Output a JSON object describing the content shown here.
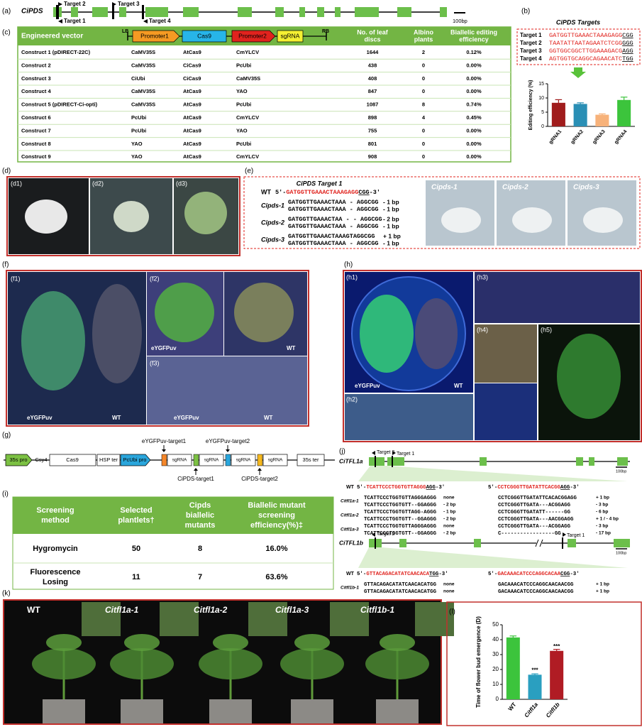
{
  "panel_a": {
    "label": "(a)",
    "gene": "CiPDS",
    "targets": [
      "Target 2",
      "Target 3",
      "Target 1",
      "Target 4"
    ],
    "scale": "100bp"
  },
  "panel_b": {
    "label": "(b)",
    "title": "CiPDS Targets",
    "targets": [
      {
        "name": "Target 1",
        "spacer": "GATGGTTGAAACTAAAGAGG",
        "pam": "CGG"
      },
      {
        "name": "Target 2",
        "spacer": "TAATATTAATAGAATCTCGG",
        "pam": "GGG"
      },
      {
        "name": "Target 3",
        "spacer": "GGTGGCGGCTTGGAAAGACG",
        "pam": "AGG"
      },
      {
        "name": "Target 4",
        "spacer": "AGTGGTGCAGGCAGAACATC",
        "pam": "TGG"
      }
    ]
  },
  "panel_c": {
    "label": "(c)",
    "header": "Engineered vector",
    "vector": {
      "lb": "LB",
      "promoter1": "Promoter1",
      "cas9": "Cas9",
      "promoter2": "Promoter2",
      "sgrna": "sgRNA",
      "rb": "RB"
    },
    "columns": [
      [
        "No. of  leaf",
        "discs"
      ],
      [
        "Albino",
        "plants"
      ],
      [
        "Biallelic editing",
        "efficiency"
      ]
    ],
    "rows": [
      [
        "Construct 1 (pDIRECT-22C)",
        "CaMV35S",
        "AtCas9",
        "CmYLCV",
        1644,
        2,
        "0.12%"
      ],
      [
        "Construct 2",
        "CaMV35S",
        "CiCas9",
        "PcUbi",
        438,
        0,
        "0.00%"
      ],
      [
        "Construct 3",
        "CiUbi",
        "CiCas9",
        "CaMV35S",
        408,
        0,
        "0.00%"
      ],
      [
        "Construct 4",
        "CaMV35S",
        "AtCas9",
        "YAO",
        847,
        0,
        "0.00%"
      ],
      [
        "Construct 5 (pDIRECT-Ci-opti)",
        "CaMV35S",
        "AtCas9",
        "PcUbi",
        1087,
        8,
        "0.74%"
      ],
      [
        "Construct 6",
        "PcUbi",
        "AtCas9",
        "CmYLCV",
        898,
        4,
        "0.45%"
      ],
      [
        "Construct 7",
        "PcUbi",
        "AtCas9",
        "YAO",
        755,
        0,
        "0.00%"
      ],
      [
        "Construct 8",
        "YAO",
        "AtCas9",
        "PcUbi",
        801,
        0,
        "0.00%"
      ],
      [
        "Construct 9",
        "YAO",
        "AtCas9",
        "CmYLCV",
        908,
        0,
        "0.00%"
      ]
    ]
  },
  "panel_d": {
    "label": "(d)",
    "subpanels": [
      "(d1)",
      "(d2)",
      "(d3)"
    ]
  },
  "panel_e": {
    "label": "(e)",
    "title": "CiPDS Target 1",
    "wt": {
      "name": "WT",
      "parts": [
        "5'-",
        "GATGGTTGAAACTAAAGAGG",
        "CGG",
        "-3'"
      ]
    },
    "mutants": [
      {
        "name": "Cipds-1",
        "alleles": [
          {
            "seq": "GATGGTTGAAACTAAA - AGGCGG",
            "change": "- 1 bp"
          },
          {
            "seq": "GATGGTTGAAACTAAA - AGGCGG",
            "change": "- 1 bp"
          }
        ]
      },
      {
        "name": "Cipds-2",
        "alleles": [
          {
            "seq": "GATGGTTGAAACTAA - - AGGCGG",
            "change": "- 2 bp"
          },
          {
            "seq": "GATGGTTGAAACTAAA - AGGCGG",
            "change": "- 1 bp"
          }
        ]
      },
      {
        "name": "Cipds-3",
        "alleles": [
          {
            "seq": "GATGGTTGAAACTAAAGTAGGCGG",
            "change": "+ 1 bp"
          },
          {
            "seq": "GATGGTTGAAACTAAA - AGGCGG",
            "change": "- 1 bp"
          }
        ]
      }
    ],
    "photos": [
      "Cipds-1",
      "Cipds-2",
      "Cipds-3"
    ]
  },
  "panel_f": {
    "label": "(f)",
    "subpanels": [
      "(f1)",
      "(f2)",
      "(f3)"
    ],
    "labels": [
      "eYGFPuv",
      "WT",
      "eYGFPuv",
      "WT",
      "eYGFPuv",
      "WT"
    ]
  },
  "panel_g": {
    "label": "(g)",
    "elements": [
      "35s pro",
      "Csy4",
      "Cas9",
      "HSP ter",
      "PcUbi pro",
      "sgRNA",
      "sgRNA",
      "sgRNA",
      "sgRNA",
      "35s ter"
    ],
    "targets": [
      "eYGFPuv-target1",
      "eYGFPuv-target2",
      "CiPDS-target1",
      "CiPDS-target2"
    ]
  },
  "panel_h": {
    "label": "(h)",
    "subpanels": [
      "(h1)",
      "(h2)",
      "(h3)",
      "(h4)",
      "(h5)"
    ],
    "labels": [
      "eYGFPuv",
      "WT"
    ]
  },
  "panel_i": {
    "label": "(i)",
    "columns": [
      [
        "Screening",
        "method"
      ],
      [
        "Selected",
        "plantlets†"
      ],
      [
        "Cipds",
        "biallelic",
        "mutants"
      ],
      [
        "Biallelic mutant",
        "screening",
        "efficiency(%)‡"
      ]
    ],
    "rows": [
      {
        "method": [
          "Hygromycin"
        ],
        "selected": 50,
        "mutants": 8,
        "efficiency": "16.0%"
      },
      {
        "method": [
          "Fluorescence",
          "Losing"
        ],
        "selected": 11,
        "mutants": 7,
        "efficiency": "63.6%"
      }
    ]
  },
  "panel_j": {
    "label": "(j)",
    "citfl1a": {
      "gene": "CiTFL1a",
      "targets": [
        "Target 2",
        "Target 1"
      ],
      "scale": "100bp",
      "wt": {
        "name": "WT",
        "left": [
          "5'-",
          "TCATTCCCTGGTGTTAGGG",
          "AGG",
          "-3'"
        ],
        "right": [
          "5'-",
          "CCTCGGGTTGATATTCACGG",
          "AGG",
          "-3'"
        ]
      },
      "mutants": [
        {
          "name": "Citfl1a-1",
          "alleles": [
            [
              "TCATTCCCTGGTGTTAGGGAGGG",
              "none",
              "CCTCGGGTTGATATTCACACGGAGG",
              "+ 1 bp"
            ],
            [
              "TCATTCCCTGGTGTT--GGAGGG",
              "- 2 bp",
              "CCTCGGGTTGATA---ACGGAGG",
              "- 3 bp"
            ]
          ]
        },
        {
          "name": "Citfl1a-2",
          "alleles": [
            [
              "TCATTCCCTGGTGTTAGG-AGGG",
              "- 1 bp",
              "CCTCGGGTTGATATT------GG",
              "- 6 bp"
            ],
            [
              "TCATTCCCTGGTGTT--GGAGGG",
              "- 2 bp",
              "CCTCGGGTTGATA---AACGGAGG",
              "+ 1 / - 4 bp"
            ]
          ]
        },
        {
          "name": "Citfl1a-3",
          "alleles": [
            [
              "TCATTCCCTGGTGTTAGGGAGGG",
              "none",
              "CCTCGGGTTGATA---ACGGAGG",
              "- 3 bp"
            ],
            [
              "TCATTCCCTGGTGTT--GGAGGG",
              "- 2 bp",
              "C-----------------GG",
              "- 17 bp"
            ]
          ]
        }
      ]
    },
    "citfl1b": {
      "gene": "CiTFL1b",
      "targets": [
        "Target 2",
        "Target 1"
      ],
      "scale": "100bp",
      "wt": {
        "name": "WT",
        "left": [
          "5'-",
          "GTTACAGACATATCAACACA",
          "TGG",
          "-3'"
        ],
        "right": [
          "5'-",
          "GACAAACATCCCAGGCACAA",
          "CGG",
          "-3'"
        ]
      },
      "mutants": [
        {
          "name": "Citfl1b-1",
          "alleles": [
            [
              "GTTACAGACATATCAACACATGG",
              "none",
              "GACAAACATCCCAGGCAACAACGG",
              "+ 1 bp"
            ],
            [
              "GTTACAGACATATCAACACATGG",
              "none",
              "GACAAACATCCCAGGCAACAACGG",
              "+ 1 bp"
            ]
          ]
        }
      ]
    }
  },
  "panel_k": {
    "label": "(k)",
    "plants": [
      "WT",
      "Citfl1a-1",
      "Citfl1a-2",
      "Citfl1a-3",
      "Citfl1b-1"
    ]
  },
  "panel_l": {
    "label": "(l)"
  },
  "chart_data": [
    {
      "type": "bar",
      "y_label": "Editing efficiency (%)",
      "categories": [
        "gRNA1",
        "gRNA2",
        "gRNA3",
        "gRNA4"
      ],
      "values": [
        8.3,
        7.9,
        4.1,
        9.3
      ],
      "errors": [
        1.1,
        0.4,
        0.3,
        1.0
      ],
      "colors": [
        "#a01c1c",
        "#2a8fb5",
        "#f7b27a",
        "#3cc43c"
      ],
      "ylim": [
        0,
        15
      ],
      "yticks": [
        0,
        5,
        10,
        15
      ]
    },
    {
      "type": "bar",
      "y_label": "Time of flower bud emergence (D)",
      "categories": [
        "WT",
        "Citfl1a",
        "Citfl1b"
      ],
      "values": [
        41.5,
        16.5,
        32.5
      ],
      "errors": [
        1.0,
        0.6,
        1.0
      ],
      "annotations": [
        null,
        "***",
        "***"
      ],
      "colors": [
        "#3cc43c",
        "#2a9fc0",
        "#b01c24"
      ],
      "ylim": [
        0,
        50
      ],
      "yticks": [
        0,
        10,
        20,
        30,
        40,
        50
      ]
    }
  ]
}
